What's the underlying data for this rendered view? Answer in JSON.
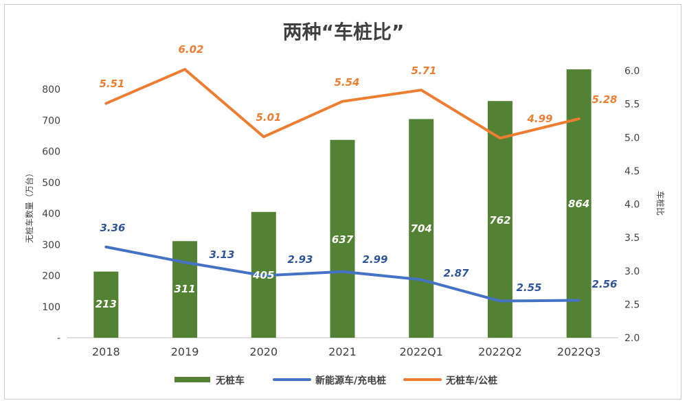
{
  "chart_data": {
    "type": "bar+line",
    "title": "两种“车桩比”",
    "categories": [
      "2018",
      "2019",
      "2020",
      "2021",
      "2022Q1",
      "2022Q2",
      "2022Q3"
    ],
    "ylabel_left": "无桩车数量（万台）",
    "ylabel_right": "车桩比",
    "ylim_left": [
      0,
      900
    ],
    "ylim_right": [
      2.0,
      6.2
    ],
    "left_ticks": [
      "-",
      "100",
      "200",
      "300",
      "400",
      "500",
      "600",
      "700",
      "800"
    ],
    "right_ticks": [
      "2.0",
      "2.5",
      "3.0",
      "3.5",
      "4.0",
      "4.5",
      "5.0",
      "5.5",
      "6.0"
    ],
    "series": [
      {
        "name": "无桩车",
        "kind": "bar",
        "axis": "left",
        "color": "#548235",
        "values": [
          213,
          311,
          405,
          637,
          704,
          762,
          864
        ],
        "labels": [
          "213",
          "311",
          "405",
          "637",
          "704",
          "762",
          "864"
        ]
      },
      {
        "name": "新能源车/充电桩",
        "kind": "line",
        "axis": "right",
        "color": "#4472c4",
        "values": [
          3.36,
          3.13,
          2.93,
          2.99,
          2.87,
          2.55,
          2.56
        ],
        "labels": [
          "3.36",
          "3.13",
          "2.93",
          "2.99",
          "2.87",
          "2.55",
          "2.56"
        ]
      },
      {
        "name": "无桩车/公桩",
        "kind": "line",
        "axis": "right",
        "color": "#ed7d31",
        "values": [
          5.51,
          6.02,
          5.01,
          5.54,
          5.71,
          4.99,
          5.28
        ],
        "labels": [
          "5.51",
          "6.02",
          "5.01",
          "5.54",
          "5.71",
          "4.99",
          "5.28"
        ]
      }
    ],
    "legend_position": "bottom"
  }
}
